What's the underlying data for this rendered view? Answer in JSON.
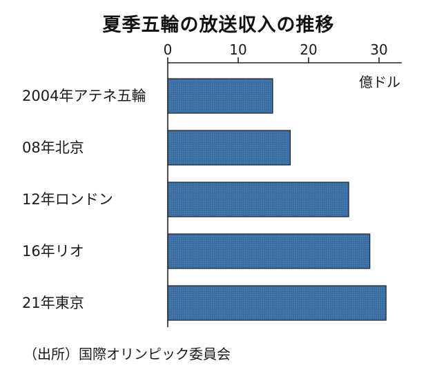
{
  "chart_data": {
    "type": "bar",
    "orientation": "horizontal",
    "title": "夏季五輪の放送収入の推移",
    "unit": "億ドル",
    "categories": [
      "2004年アテネ五輪",
      "08年北京",
      "12年ロンドン",
      "16年リオ",
      "21年東京"
    ],
    "values": [
      14.9,
      17.4,
      25.7,
      28.7,
      31.0
    ],
    "xlim": [
      0,
      35
    ],
    "xticks": [
      "0",
      "10",
      "20",
      "30"
    ],
    "xtick_values": [
      0,
      10,
      20,
      30
    ],
    "xaxis_position": "top",
    "grid": false,
    "bar_color": "#3b6ea3",
    "source": "（出所）国際オリンピック委員会"
  }
}
